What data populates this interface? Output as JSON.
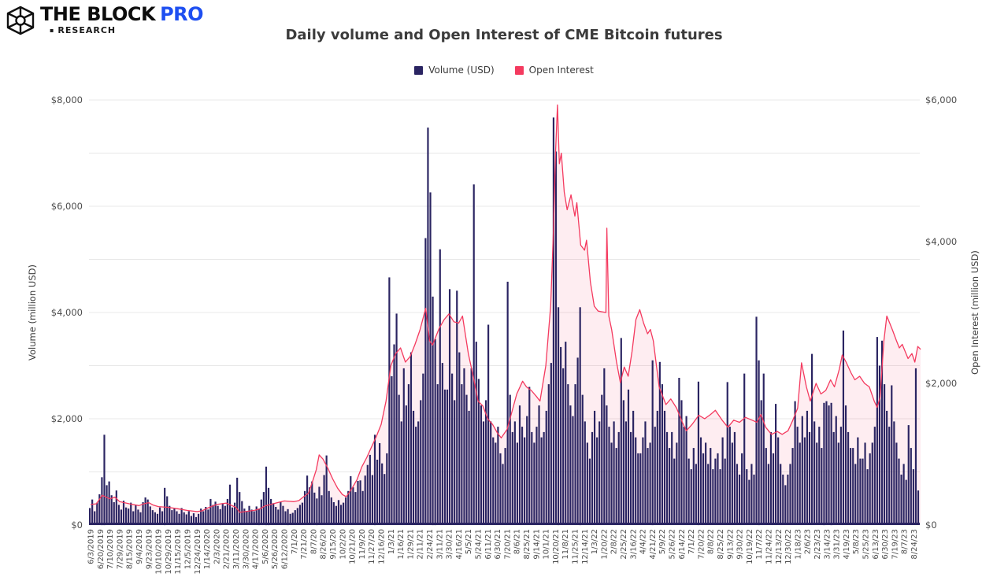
{
  "header": {
    "logo": {
      "the": "THE",
      "block": "BLOCK",
      "pro": "PRO",
      "sub": "RESEARCH",
      "bullet": "▪",
      "pro_color": "#1E4FF1"
    },
    "title": "Daily volume and Open Interest of CME Bitcoin futures"
  },
  "legend": [
    {
      "label": "Volume (USD)",
      "color": "#2A2462"
    },
    {
      "label": "Open Interest",
      "color": "#F43A5F"
    }
  ],
  "chart_data": {
    "type": "bar+line",
    "title": "Daily volume and Open Interest of CME Bitcoin futures",
    "background": "#ffffff",
    "grid_color": "#e8e8e8",
    "x_tick_labels": [
      "6/3/2019",
      "6/20/2019",
      "7/10/2019",
      "7/29/2019",
      "8/15/2019",
      "9/4/2019",
      "9/23/2019",
      "10/10/2019",
      "10/29/2019",
      "11/15/2019",
      "12/5/2019",
      "12/24/2019",
      "1/14/2020",
      "2/3/2020",
      "2/21/2020",
      "3/11/2020",
      "3/30/2020",
      "4/17/2020",
      "5/6/2020",
      "5/26/2020",
      "6/12/2020",
      "7/1/20",
      "7/21/20",
      "8/7/20",
      "8/26/20",
      "9/15/20",
      "10/2/20",
      "10/21/20",
      "11/9/20",
      "11/27/20",
      "12/16/20",
      "1/3/21",
      "1/16/21",
      "1/29/21",
      "2/11/21",
      "2/24/21",
      "3/11/21",
      "3/30/21",
      "4/16/21",
      "5/5/21",
      "5/24/21",
      "6/11/21",
      "6/30/21",
      "7/20/21",
      "8/6/21",
      "8/25/21",
      "9/14/21",
      "10/1/21",
      "10/20/21",
      "11/8/21",
      "11/25/21",
      "12/14/21",
      "1/3/22",
      "1/20/22",
      "2/8/22",
      "2/25/22",
      "3/16/22",
      "4/4/22",
      "4/21/22",
      "5/9/22",
      "5/26/22",
      "6/14/22",
      "7/1/22",
      "7/20/22",
      "8/8/22",
      "8/25/22",
      "9/13/22",
      "9/30/22",
      "10/19/22",
      "11/7/22",
      "11/24/22",
      "12/13/22",
      "12/30/22",
      "1/18/23",
      "2/6/23",
      "2/23/23",
      "3/14/23",
      "3/31/23",
      "4/19/23",
      "5/8/23",
      "5/25/23",
      "6/13/23",
      "6/30/23",
      "7/19/23",
      "8/7/23",
      "8/24/23"
    ],
    "left_axis": {
      "label": "Volume (million USD)",
      "min": 0,
      "max": 8000,
      "gridline_step": 1000,
      "ticks": [
        [
          "$0",
          0
        ],
        [
          "$2,000",
          2000
        ],
        [
          "$4,000",
          4000
        ],
        [
          "$6,000",
          6000
        ],
        [
          "$8,000",
          8000
        ]
      ]
    },
    "right_axis": {
      "label": "Open Interest (million USD)",
      "min": 0,
      "max": 6000,
      "ticks": [
        [
          "$0",
          0
        ],
        [
          "$2,000",
          2000
        ],
        [
          "$4,000",
          4000
        ],
        [
          "$6,000",
          6000
        ]
      ]
    },
    "series": [
      {
        "name": "Volume (USD)",
        "type": "bar",
        "axis": "left",
        "color": "#2A2462",
        "bars_per_label": 4,
        "values": [
          320,
          480,
          260,
          420,
          580,
          900,
          1700,
          750,
          820,
          560,
          430,
          650,
          380,
          290,
          460,
          330,
          310,
          420,
          260,
          380,
          290,
          240,
          430,
          520,
          480,
          350,
          280,
          240,
          210,
          330,
          260,
          700,
          540,
          360,
          280,
          310,
          260,
          210,
          320,
          240,
          200,
          260,
          170,
          220,
          150,
          210,
          310,
          260,
          340,
          290,
          490,
          380,
          440,
          360,
          300,
          410,
          360,
          490,
          760,
          330,
          420,
          890,
          620,
          450,
          310,
          260,
          360,
          290,
          260,
          350,
          300,
          480,
          620,
          1100,
          700,
          490,
          410,
          340,
          290,
          440,
          360,
          260,
          300,
          210,
          230,
          280,
          320,
          380,
          420,
          640,
          930,
          710,
          820,
          610,
          500,
          720,
          560,
          940,
          1310,
          640,
          520,
          430,
          360,
          470,
          380,
          420,
          520,
          640,
          920,
          710,
          620,
          830,
          840,
          640,
          930,
          1130,
          1320,
          940,
          1700,
          1230,
          1540,
          1160,
          960,
          1350,
          4660,
          2800,
          3400,
          3980,
          2450,
          1950,
          2950,
          2250,
          2650,
          3250,
          2150,
          1850,
          1950,
          2350,
          2850,
          5400,
          7480,
          6260,
          4300,
          3500,
          2650,
          5190,
          3050,
          2550,
          2550,
          4440,
          2850,
          2350,
          4410,
          3250,
          2650,
          2950,
          2450,
          2150,
          2950,
          6410,
          3450,
          2750,
          2250,
          1950,
          2350,
          3770,
          1950,
          1650,
          1550,
          1850,
          1350,
          1150,
          1450,
          4580,
          2450,
          1750,
          1950,
          1550,
          2250,
          1850,
          1650,
          2050,
          2600,
          1750,
          1550,
          1850,
          2250,
          1650,
          1750,
          2150,
          2650,
          3050,
          7670,
          7030,
          4100,
          3350,
          2950,
          3450,
          2650,
          2250,
          2050,
          2650,
          3150,
          4100,
          2450,
          1950,
          1550,
          1250,
          1750,
          2150,
          1650,
          1950,
          2450,
          2950,
          2250,
          1850,
          1550,
          1950,
          1450,
          1750,
          3520,
          2350,
          1950,
          2550,
          1750,
          2150,
          1650,
          1350,
          1350,
          1650,
          1950,
          1450,
          1550,
          3100,
          1850,
          2150,
          3070,
          2650,
          2150,
          1750,
          1450,
          1750,
          1250,
          1550,
          2770,
          2350,
          1850,
          2050,
          1250,
          1050,
          1450,
          1150,
          2700,
          1650,
          1350,
          1550,
          1150,
          1450,
          1050,
          1250,
          1350,
          1050,
          1650,
          1250,
          2690,
          1850,
          1550,
          1750,
          1150,
          950,
          1350,
          2850,
          1050,
          850,
          1150,
          950,
          3920,
          3100,
          2350,
          2850,
          1450,
          1150,
          1750,
          1350,
          2280,
          1650,
          1150,
          950,
          750,
          950,
          1150,
          1450,
          2330,
          1850,
          1550,
          2050,
          1650,
          2150,
          1750,
          3220,
          1950,
          1550,
          1850,
          1450,
          2300,
          2330,
          2250,
          2300,
          1750,
          2050,
          1550,
          1850,
          3660,
          2250,
          1750,
          1450,
          1450,
          1150,
          1650,
          1250,
          1250,
          1550,
          1050,
          1350,
          1550,
          1850,
          3540,
          3000,
          3470,
          2650,
          2150,
          1850,
          2630,
          1950,
          1550,
          1250,
          950,
          1150,
          850,
          1880,
          1450,
          1050,
          2950,
          650
        ]
      },
      {
        "name": "Open Interest",
        "type": "line",
        "axis": "right",
        "color": "#F43A5F",
        "area_fill": "#F43A5F",
        "area_opacity": 0.09,
        "points": [
          [
            0,
            290
          ],
          [
            0.6,
            300
          ],
          [
            1.2,
            420
          ],
          [
            2,
            370
          ],
          [
            2.5,
            395
          ],
          [
            3,
            330
          ],
          [
            4,
            300
          ],
          [
            5,
            275
          ],
          [
            5.5,
            300
          ],
          [
            6,
            315
          ],
          [
            6.5,
            280
          ],
          [
            7,
            260
          ],
          [
            8,
            250
          ],
          [
            9,
            230
          ],
          [
            10,
            205
          ],
          [
            11,
            190
          ],
          [
            11.5,
            200
          ],
          [
            12,
            235
          ],
          [
            13,
            290
          ],
          [
            14,
            310
          ],
          [
            14.5,
            280
          ],
          [
            15,
            250
          ],
          [
            15.4,
            180
          ],
          [
            16,
            190
          ],
          [
            17,
            210
          ],
          [
            17.5,
            230
          ],
          [
            18,
            270
          ],
          [
            19,
            305
          ],
          [
            20,
            340
          ],
          [
            20.5,
            335
          ],
          [
            21,
            330
          ],
          [
            21.5,
            345
          ],
          [
            22,
            400
          ],
          [
            22.5,
            450
          ],
          [
            23,
            650
          ],
          [
            23.3,
            780
          ],
          [
            23.6,
            990
          ],
          [
            24,
            930
          ],
          [
            24.5,
            800
          ],
          [
            25,
            650
          ],
          [
            25.5,
            520
          ],
          [
            26,
            430
          ],
          [
            26.4,
            400
          ],
          [
            27,
            520
          ],
          [
            27.5,
            640
          ],
          [
            28,
            820
          ],
          [
            28.5,
            950
          ],
          [
            29,
            1100
          ],
          [
            29.5,
            1250
          ],
          [
            30,
            1420
          ],
          [
            30.5,
            1750
          ],
          [
            31,
            2250
          ],
          [
            31.5,
            2420
          ],
          [
            32,
            2500
          ],
          [
            32.5,
            2300
          ],
          [
            33,
            2380
          ],
          [
            33.5,
            2550
          ],
          [
            34,
            2750
          ],
          [
            34.6,
            3060
          ],
          [
            35,
            2600
          ],
          [
            35.3,
            2540
          ],
          [
            36,
            2780
          ],
          [
            36.5,
            2900
          ],
          [
            37,
            2980
          ],
          [
            37.5,
            2870
          ],
          [
            38,
            2850
          ],
          [
            38.4,
            2950
          ],
          [
            39,
            2420
          ],
          [
            39.5,
            2100
          ],
          [
            40,
            1750
          ],
          [
            40.5,
            1680
          ],
          [
            41,
            1500
          ],
          [
            41.5,
            1420
          ],
          [
            42,
            1300
          ],
          [
            42.4,
            1230
          ],
          [
            43,
            1350
          ],
          [
            43.5,
            1600
          ],
          [
            44,
            1850
          ],
          [
            44.6,
            2030
          ],
          [
            45,
            1950
          ],
          [
            45.5,
            1900
          ],
          [
            46,
            1820
          ],
          [
            46.4,
            1750
          ],
          [
            47,
            2250
          ],
          [
            47.5,
            3100
          ],
          [
            47.8,
            4200
          ],
          [
            48,
            5250
          ],
          [
            48.2,
            5930
          ],
          [
            48.4,
            5100
          ],
          [
            48.6,
            5250
          ],
          [
            48.9,
            4700
          ],
          [
            49.2,
            4450
          ],
          [
            49.6,
            4660
          ],
          [
            50,
            4360
          ],
          [
            50.2,
            4550
          ],
          [
            50.6,
            3950
          ],
          [
            51,
            3880
          ],
          [
            51.2,
            4020
          ],
          [
            51.6,
            3430
          ],
          [
            52,
            3090
          ],
          [
            52.4,
            3020
          ],
          [
            53.2,
            3000
          ],
          [
            53.3,
            4190
          ],
          [
            53.5,
            2950
          ],
          [
            53.8,
            2760
          ],
          [
            54.3,
            2300
          ],
          [
            54.7,
            2010
          ],
          [
            55.1,
            2230
          ],
          [
            55.5,
            2100
          ],
          [
            55.9,
            2450
          ],
          [
            56.3,
            2900
          ],
          [
            56.7,
            3040
          ],
          [
            57.1,
            2850
          ],
          [
            57.5,
            2700
          ],
          [
            57.8,
            2760
          ],
          [
            58.1,
            2600
          ],
          [
            58.7,
            1950
          ],
          [
            59.4,
            1700
          ],
          [
            59.9,
            1780
          ],
          [
            60.5,
            1650
          ],
          [
            61.1,
            1450
          ],
          [
            61.5,
            1330
          ],
          [
            62.1,
            1420
          ],
          [
            62.8,
            1550
          ],
          [
            63.4,
            1500
          ],
          [
            64,
            1560
          ],
          [
            64.5,
            1620
          ],
          [
            65.2,
            1480
          ],
          [
            65.8,
            1380
          ],
          [
            66.4,
            1480
          ],
          [
            67,
            1450
          ],
          [
            67.6,
            1520
          ],
          [
            68.3,
            1480
          ],
          [
            68.8,
            1450
          ],
          [
            69.2,
            1560
          ],
          [
            69.7,
            1380
          ],
          [
            70.3,
            1280
          ],
          [
            70.9,
            1320
          ],
          [
            71.4,
            1280
          ],
          [
            72,
            1330
          ],
          [
            72.5,
            1480
          ],
          [
            73,
            1650
          ],
          [
            73.4,
            2290
          ],
          [
            73.9,
            1950
          ],
          [
            74.3,
            1750
          ],
          [
            74.9,
            2000
          ],
          [
            75.4,
            1850
          ],
          [
            75.9,
            1900
          ],
          [
            76.4,
            2050
          ],
          [
            76.8,
            1950
          ],
          [
            77.3,
            2200
          ],
          [
            77.6,
            2400
          ],
          [
            78,
            2300
          ],
          [
            78.5,
            2150
          ],
          [
            78.9,
            2050
          ],
          [
            79.4,
            2100
          ],
          [
            79.9,
            2000
          ],
          [
            80.4,
            1950
          ],
          [
            80.9,
            1750
          ],
          [
            81.2,
            1660
          ],
          [
            81.5,
            1800
          ],
          [
            81.9,
            2600
          ],
          [
            82.2,
            2950
          ],
          [
            82.5,
            2850
          ],
          [
            82.8,
            2750
          ],
          [
            83.2,
            2600
          ],
          [
            83.5,
            2500
          ],
          [
            83.8,
            2550
          ],
          [
            84.1,
            2450
          ],
          [
            84.4,
            2350
          ],
          [
            84.8,
            2420
          ],
          [
            85.1,
            2300
          ],
          [
            85.4,
            2520
          ],
          [
            85.7,
            2480
          ]
        ]
      }
    ]
  }
}
